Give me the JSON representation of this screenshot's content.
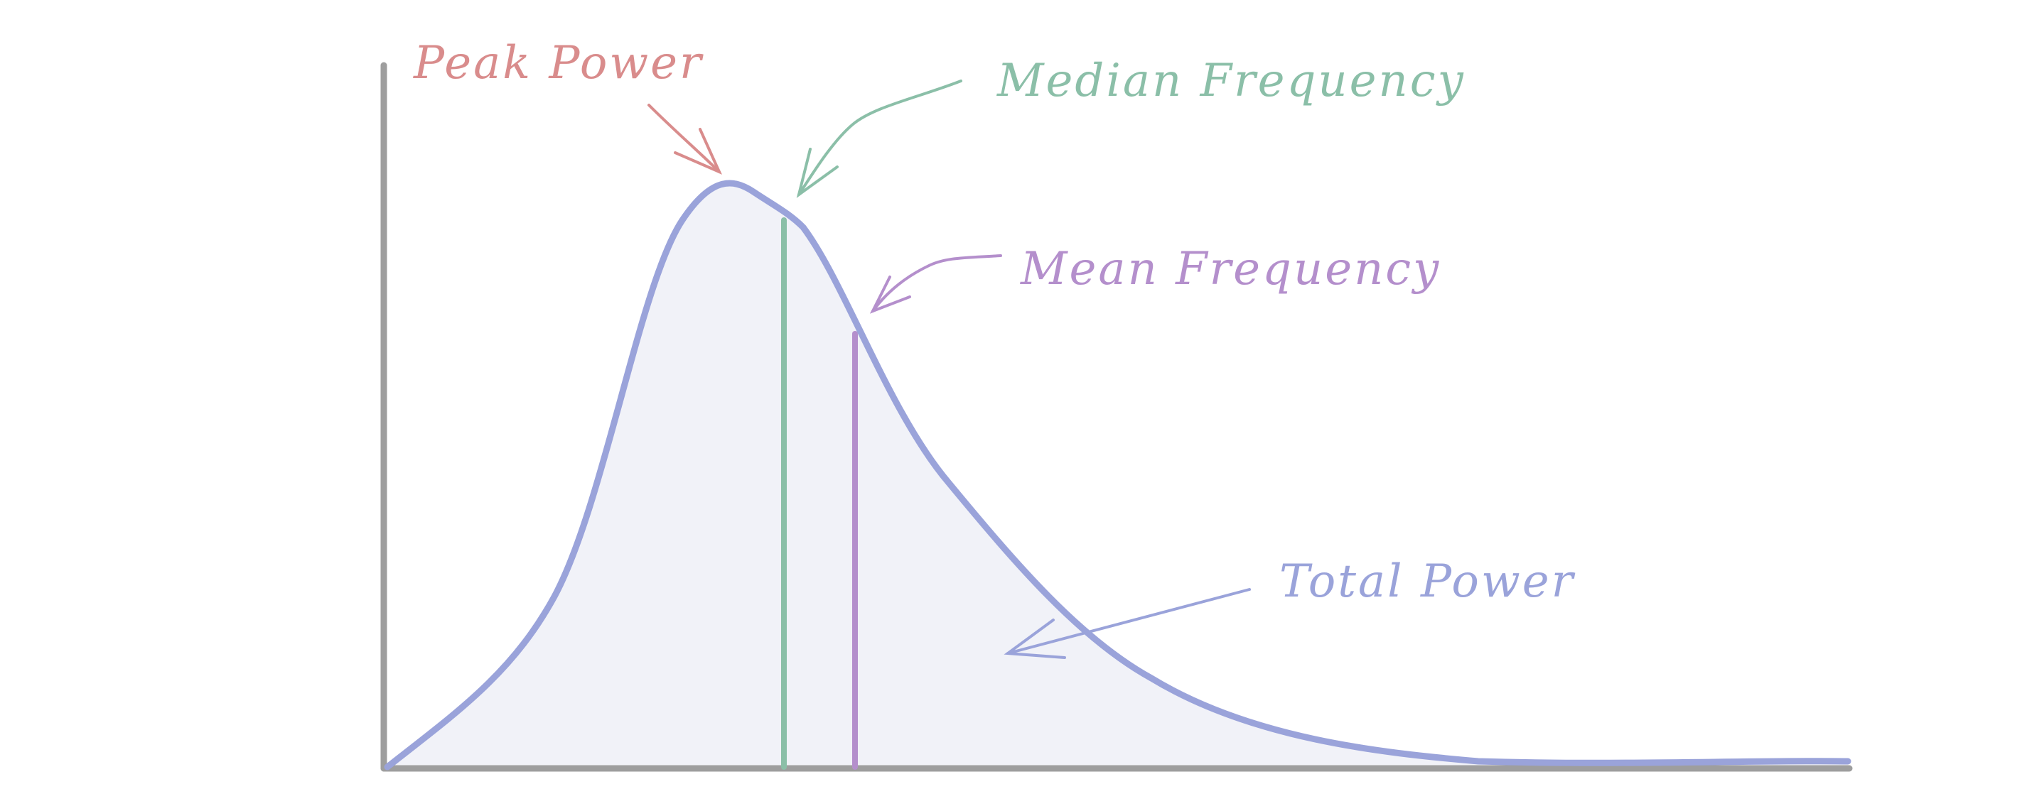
{
  "annotations": {
    "peak_power": {
      "text": "Peak Power",
      "color": "#d98c8c"
    },
    "median_frequency": {
      "text": "Median Frequency",
      "color": "#8bbfa8"
    },
    "mean_frequency": {
      "text": "Mean Frequency",
      "color": "#b48fcc"
    },
    "total_power": {
      "text": "Total Power",
      "color": "#9aa3da"
    }
  },
  "colors": {
    "axis": "#9e9e9e",
    "curve": "#9aa3da",
    "fill": "#eef0f8",
    "median_line": "#8bbfa8",
    "mean_line": "#b48fcc"
  }
}
